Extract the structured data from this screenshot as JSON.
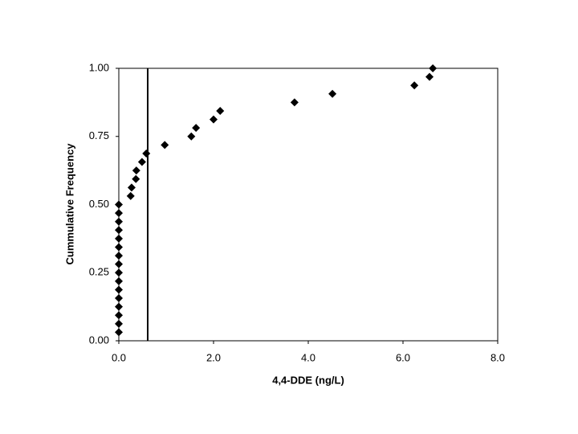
{
  "chart_data": {
    "type": "scatter",
    "x_label": "4,4-DDE (ng/L)",
    "y_label": "Cummulative Frequency",
    "x": [
      0,
      0,
      0,
      0,
      0,
      0,
      0,
      0,
      0,
      0,
      0,
      0,
      0,
      0,
      0,
      0,
      0.25,
      0.27,
      0.36,
      0.37,
      0.49,
      0.58,
      0.97,
      1.53,
      1.63,
      2.0,
      2.14,
      3.71,
      4.51,
      6.24,
      6.56,
      6.63
    ],
    "values": [
      0.03125,
      0.0625,
      0.09375,
      0.125,
      0.15625,
      0.1875,
      0.21875,
      0.25,
      0.28125,
      0.3125,
      0.34375,
      0.375,
      0.40625,
      0.4375,
      0.46875,
      0.5,
      0.53125,
      0.5625,
      0.59375,
      0.625,
      0.65625,
      0.6875,
      0.71875,
      0.75,
      0.78125,
      0.8125,
      0.84375,
      0.875,
      0.90625,
      0.9375,
      0.96875,
      1.0
    ],
    "color": "#000000",
    "reference_line_x": 0.61,
    "xlim": [
      0,
      8
    ],
    "ylim": [
      0,
      1
    ],
    "xticks": [
      {
        "value": 0,
        "label": "0.0"
      },
      {
        "value": 2,
        "label": "2.0"
      },
      {
        "value": 4,
        "label": "4.0"
      },
      {
        "value": 6,
        "label": "6.0"
      },
      {
        "value": 8,
        "label": "8.0"
      }
    ],
    "yticks": [
      {
        "value": 0,
        "label": "0.00"
      },
      {
        "value": 0.25,
        "label": "0.25"
      },
      {
        "value": 0.5,
        "label": "0.50"
      },
      {
        "value": 0.75,
        "label": "0.75"
      },
      {
        "value": 1,
        "label": "1.00"
      }
    ]
  }
}
